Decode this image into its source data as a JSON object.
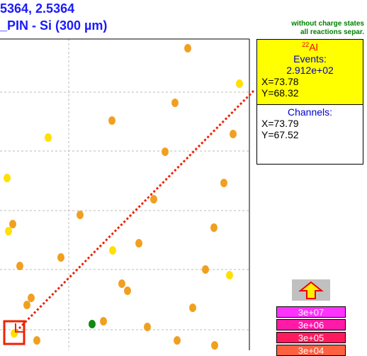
{
  "header": {
    "line1": "5364, 2.5364",
    "line2": "_PIN - Si (300 µm)"
  },
  "notes": {
    "line1": "without charge states",
    "line2": "all reactions separ."
  },
  "info": {
    "mass": "22",
    "element": "Al",
    "events_label": "Events:",
    "events": "2.912e+02",
    "x": "X=73.78",
    "y": "Y=68.32",
    "channels_label": "Channels:",
    "ch_x": "X=73.79",
    "ch_y": "Y=67.52"
  },
  "scale": [
    "3e+07",
    "3e+06",
    "3e+05",
    "3e+04"
  ]
}
